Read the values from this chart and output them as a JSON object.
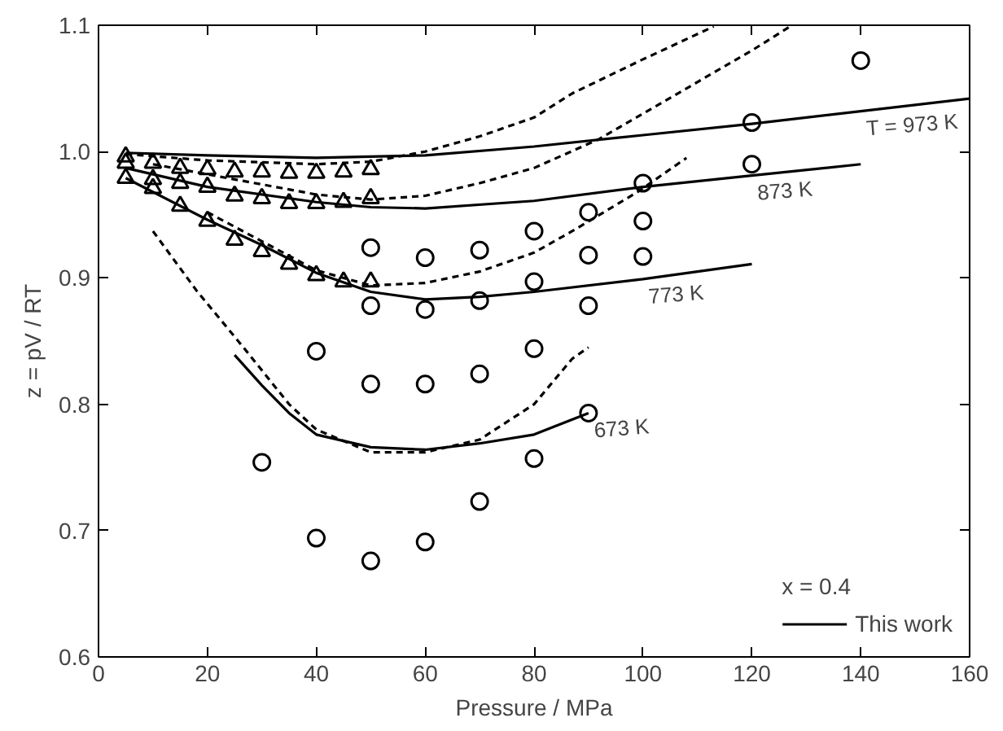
{
  "chart_data": {
    "type": "line",
    "xlabel": "Pressure / MPa",
    "ylabel": "z = pV / RT",
    "legend_title": "x = 0.4",
    "legend": "bottom right",
    "grid": false,
    "xlim": [
      0,
      160
    ],
    "xticks": [
      0,
      20,
      40,
      60,
      80,
      100,
      120,
      140,
      160
    ],
    "ylim": [
      0.6,
      1.1
    ],
    "yticks": [
      {
        "value": 0.6,
        "label": "0.6"
      },
      {
        "value": 0.7,
        "label": "0.7"
      },
      {
        "value": 0.8,
        "label": "0.8"
      },
      {
        "value": 0.9,
        "label": "0.9"
      },
      {
        "value": 1.0,
        "label": "1.0"
      },
      {
        "value": 1.1,
        "label": "1.1"
      }
    ],
    "annotations": [
      {
        "text": "T = 973 K",
        "x": 140,
        "y": 1.032
      },
      {
        "text": "873 K",
        "x": 120,
        "y": 0.981
      },
      {
        "text": "773 K",
        "x": 100,
        "y": 0.899
      },
      {
        "text": "673 K",
        "x": 90,
        "y": 0.793
      }
    ],
    "series": [
      {
        "name": "This work",
        "line_style": "solid",
        "color": "#000000",
        "x": [
          5,
          20,
          40,
          60,
          80,
          100,
          120,
          140,
          160
        ],
        "values": [
          0.999,
          0.997,
          0.995,
          0.997,
          1.004,
          1.013,
          1.022,
          1.032,
          1.042
        ]
      },
      {
        "line_style": "solid",
        "color": "#000000",
        "x": [
          5,
          20,
          40,
          50,
          60,
          80,
          100,
          120,
          140
        ],
        "values": [
          0.987,
          0.972,
          0.96,
          0.956,
          0.955,
          0.961,
          0.972,
          0.981,
          0.99
        ]
      },
      {
        "line_style": "solid",
        "color": "#000000",
        "x": [
          5,
          20,
          30,
          40,
          50,
          60,
          70,
          80,
          100,
          120
        ],
        "values": [
          0.979,
          0.946,
          0.926,
          0.904,
          0.889,
          0.883,
          0.885,
          0.889,
          0.899,
          0.911
        ]
      },
      {
        "line_style": "solid",
        "color": "#000000",
        "x": [
          25,
          30,
          35,
          40,
          50,
          60,
          70,
          80,
          90
        ],
        "values": [
          0.839,
          0.815,
          0.793,
          0.776,
          0.766,
          0.764,
          0.769,
          0.776,
          0.793
        ]
      },
      {
        "line_style": "dashed",
        "color": "#000000",
        "x": [
          5,
          20,
          40,
          50,
          60,
          70,
          80,
          87,
          100,
          113
        ],
        "values": [
          0.998,
          0.993,
          0.99,
          0.992,
          1.0,
          1.012,
          1.027,
          1.046,
          1.073,
          1.099
        ]
      },
      {
        "line_style": "dashed",
        "color": "#000000",
        "x": [
          10,
          20,
          40,
          50,
          60,
          70,
          80,
          92,
          100,
          110,
          120,
          127
        ],
        "values": [
          0.99,
          0.982,
          0.966,
          0.962,
          0.965,
          0.975,
          0.987,
          1.01,
          1.03,
          1.055,
          1.08,
          1.099
        ]
      },
      {
        "line_style": "dashed",
        "color": "#000000",
        "x": [
          20,
          40,
          50,
          60,
          70,
          80,
          87,
          99,
          108
        ],
        "values": [
          0.952,
          0.906,
          0.894,
          0.896,
          0.905,
          0.92,
          0.937,
          0.968,
          0.995
        ]
      },
      {
        "line_style": "dashed",
        "color": "#000000",
        "x": [
          10,
          18,
          27,
          35,
          40,
          50,
          60,
          70,
          80,
          87,
          90
        ],
        "values": [
          0.937,
          0.89,
          0.843,
          0.8,
          0.78,
          0.762,
          0.762,
          0.772,
          0.8,
          0.836,
          0.845
        ]
      },
      {
        "type": "scatter",
        "marker": "triangle",
        "color": "#000000",
        "x": [
          5,
          10,
          15,
          20,
          25,
          30,
          35,
          40,
          45,
          50
        ],
        "values": [
          0.996,
          0.991,
          0.987,
          0.986,
          0.984,
          0.984,
          0.983,
          0.983,
          0.984,
          0.986
        ]
      },
      {
        "type": "scatter",
        "marker": "triangle",
        "color": "#000000",
        "x": [
          5,
          10,
          15,
          20,
          25,
          30,
          35,
          40,
          45,
          50
        ],
        "values": [
          0.991,
          0.978,
          0.975,
          0.972,
          0.965,
          0.963,
          0.959,
          0.959,
          0.96,
          0.963
        ]
      },
      {
        "type": "scatter",
        "marker": "triangle",
        "color": "#000000",
        "x": [
          5,
          10,
          15,
          20,
          25,
          30,
          35,
          40,
          45,
          50
        ],
        "values": [
          0.979,
          0.971,
          0.957,
          0.945,
          0.93,
          0.921,
          0.911,
          0.902,
          0.897,
          0.897
        ]
      },
      {
        "type": "scatter",
        "marker": "circle",
        "color": "#000000",
        "x": [
          30,
          40,
          40,
          50,
          50,
          50,
          50,
          60,
          60,
          60,
          60,
          70,
          70,
          70,
          70,
          80,
          80,
          80,
          80,
          90,
          90,
          90,
          90,
          100,
          100,
          100,
          120,
          120,
          140
        ],
        "values": [
          0.754,
          0.842,
          0.694,
          0.924,
          0.878,
          0.816,
          0.676,
          0.916,
          0.875,
          0.816,
          0.691,
          0.922,
          0.882,
          0.824,
          0.723,
          0.937,
          0.897,
          0.844,
          0.757,
          0.952,
          0.918,
          0.878,
          0.793,
          0.975,
          0.945,
          0.917,
          1.023,
          0.99,
          1.072
        ]
      }
    ]
  }
}
